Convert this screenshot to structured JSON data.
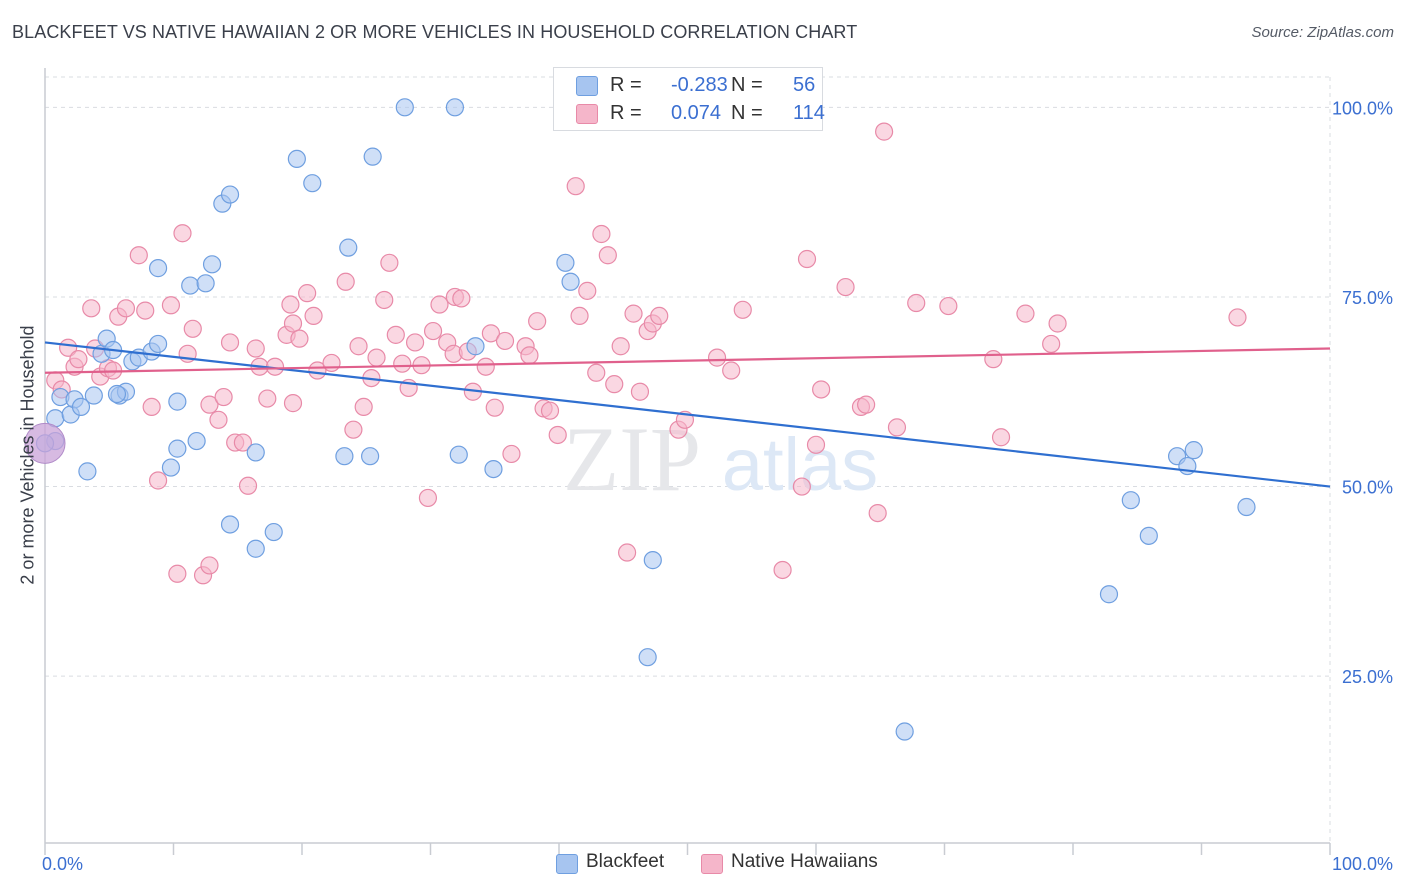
{
  "title": "BLACKFEET VS NATIVE HAWAIIAN 2 OR MORE VEHICLES IN HOUSEHOLD CORRELATION CHART",
  "source": "Source: ZipAtlas.com",
  "watermark": {
    "zip": "ZIP",
    "atlas": "atlas"
  },
  "legend": {
    "rows": [
      {
        "r_label": "R =",
        "r_value": "-0.283",
        "n_label": "N =",
        "n_value": "56",
        "color": "#a7c5f0"
      },
      {
        "r_label": "R =",
        "r_value": "0.074",
        "n_label": "N =",
        "n_value": "114",
        "color": "#f5b6ca"
      }
    ]
  },
  "bottom_legend": [
    "Blackfeet",
    "Native Hawaiians"
  ],
  "colors": {
    "blue_fill": "#a7c5f0",
    "blue_stroke": "#6f9fe0",
    "blue_line": "#2f6fd0",
    "pink_fill": "#f5b6ca",
    "pink_stroke": "#e88aa8",
    "pink_line": "#e0608c",
    "tick_text": "#3b6fd1",
    "grid": "#d9dce1"
  },
  "chart_data": {
    "type": "scatter",
    "title": "BLACKFEET VS NATIVE HAWAIIAN 2 OR MORE VEHICLES IN HOUSEHOLD CORRELATION CHART",
    "xlabel": "",
    "ylabel": "2 or more Vehicles in Household",
    "x_ticks": [
      "0.0%",
      "100.0%"
    ],
    "y_ticks": [
      "25.0%",
      "50.0%",
      "75.0%",
      "100.0%"
    ],
    "xlim": [
      0,
      100
    ],
    "ylim": [
      3,
      104
    ],
    "grid": true,
    "series": [
      {
        "name": "Blackfeet",
        "r": -0.283,
        "n": 56,
        "trend": {
          "x": [
            0,
            100
          ],
          "y": [
            69.0,
            50.0
          ]
        },
        "points": [
          [
            0.8,
            56.0
          ],
          [
            0.8,
            59.0
          ],
          [
            1.2,
            61.8
          ],
          [
            2.0,
            59.5
          ],
          [
            2.3,
            61.5
          ],
          [
            2.8,
            60.5
          ],
          [
            3.3,
            52.0
          ],
          [
            3.8,
            62.0
          ],
          [
            4.4,
            67.5
          ],
          [
            4.8,
            69.5
          ],
          [
            5.3,
            68.0
          ],
          [
            5.8,
            62.0
          ],
          [
            6.3,
            62.5
          ],
          [
            6.8,
            66.5
          ],
          [
            7.3,
            67.0
          ],
          [
            8.3,
            67.8
          ],
          [
            8.8,
            78.8
          ],
          [
            8.8,
            68.8
          ],
          [
            9.8,
            52.5
          ],
          [
            10.3,
            61.2
          ],
          [
            10.3,
            55.0
          ],
          [
            11.3,
            76.5
          ],
          [
            11.8,
            56.0
          ],
          [
            12.5,
            76.8
          ],
          [
            13.0,
            79.3
          ],
          [
            13.8,
            87.3
          ],
          [
            14.4,
            88.5
          ],
          [
            14.4,
            45.0
          ],
          [
            16.4,
            54.5
          ],
          [
            16.4,
            41.8
          ],
          [
            17.8,
            44.0
          ],
          [
            19.6,
            93.2
          ],
          [
            20.8,
            90.0
          ],
          [
            23.3,
            54.0
          ],
          [
            23.6,
            81.5
          ],
          [
            25.3,
            54.0
          ],
          [
            25.5,
            93.5
          ],
          [
            28.0,
            100.0
          ],
          [
            31.9,
            100.0
          ],
          [
            32.2,
            54.2
          ],
          [
            33.5,
            68.5
          ],
          [
            34.9,
            52.3
          ],
          [
            40.5,
            79.5
          ],
          [
            40.9,
            77.0
          ],
          [
            46.9,
            27.5
          ],
          [
            47.3,
            40.3
          ],
          [
            66.9,
            17.7
          ],
          [
            82.8,
            35.8
          ],
          [
            84.5,
            48.2
          ],
          [
            85.9,
            43.5
          ],
          [
            88.1,
            54.0
          ],
          [
            88.9,
            52.7
          ],
          [
            89.4,
            54.8
          ],
          [
            93.5,
            47.3
          ],
          [
            0.0,
            55.7
          ],
          [
            5.6,
            62.2
          ]
        ]
      },
      {
        "name": "Native Hawaiians",
        "r": 0.074,
        "n": 114,
        "trend": {
          "x": [
            0,
            100
          ],
          "y": [
            65.0,
            68.2
          ]
        },
        "points": [
          [
            0.8,
            64.0
          ],
          [
            1.3,
            62.8
          ],
          [
            1.8,
            68.3
          ],
          [
            2.3,
            65.8
          ],
          [
            2.6,
            66.8
          ],
          [
            3.6,
            73.5
          ],
          [
            3.9,
            68.2
          ],
          [
            4.3,
            64.5
          ],
          [
            4.9,
            65.6
          ],
          [
            5.3,
            65.3
          ],
          [
            5.7,
            72.4
          ],
          [
            6.3,
            73.5
          ],
          [
            7.3,
            80.5
          ],
          [
            7.8,
            73.2
          ],
          [
            8.3,
            60.5
          ],
          [
            8.8,
            50.8
          ],
          [
            9.8,
            73.9
          ],
          [
            10.3,
            38.5
          ],
          [
            10.7,
            83.4
          ],
          [
            11.1,
            67.5
          ],
          [
            11.5,
            70.8
          ],
          [
            12.3,
            38.3
          ],
          [
            12.8,
            39.6
          ],
          [
            12.8,
            60.8
          ],
          [
            13.5,
            58.8
          ],
          [
            13.9,
            61.8
          ],
          [
            14.4,
            69.0
          ],
          [
            14.8,
            55.8
          ],
          [
            15.4,
            55.8
          ],
          [
            15.8,
            50.1
          ],
          [
            16.4,
            68.2
          ],
          [
            16.7,
            65.8
          ],
          [
            17.3,
            61.6
          ],
          [
            17.9,
            65.8
          ],
          [
            18.8,
            70.0
          ],
          [
            19.1,
            74.0
          ],
          [
            19.3,
            71.5
          ],
          [
            19.8,
            69.5
          ],
          [
            19.3,
            61.0
          ],
          [
            20.4,
            75.5
          ],
          [
            20.9,
            72.5
          ],
          [
            21.2,
            65.3
          ],
          [
            22.3,
            66.3
          ],
          [
            23.4,
            77.0
          ],
          [
            24.0,
            57.5
          ],
          [
            24.4,
            68.5
          ],
          [
            24.8,
            60.5
          ],
          [
            25.4,
            64.3
          ],
          [
            25.8,
            67.0
          ],
          [
            26.4,
            74.6
          ],
          [
            26.8,
            79.5
          ],
          [
            27.3,
            70.0
          ],
          [
            27.8,
            66.2
          ],
          [
            28.3,
            63.0
          ],
          [
            28.8,
            69.0
          ],
          [
            29.3,
            66.0
          ],
          [
            29.8,
            48.5
          ],
          [
            30.2,
            70.5
          ],
          [
            30.7,
            74.0
          ],
          [
            31.3,
            69.0
          ],
          [
            31.8,
            67.5
          ],
          [
            31.9,
            75.0
          ],
          [
            32.4,
            74.8
          ],
          [
            32.9,
            67.8
          ],
          [
            33.3,
            62.5
          ],
          [
            34.3,
            65.8
          ],
          [
            34.7,
            70.2
          ],
          [
            35.0,
            60.4
          ],
          [
            35.8,
            69.2
          ],
          [
            36.3,
            54.3
          ],
          [
            37.4,
            68.5
          ],
          [
            37.7,
            67.3
          ],
          [
            38.3,
            71.8
          ],
          [
            38.8,
            60.3
          ],
          [
            39.3,
            60.0
          ],
          [
            39.9,
            56.8
          ],
          [
            41.3,
            89.6
          ],
          [
            41.6,
            72.5
          ],
          [
            42.2,
            75.8
          ],
          [
            42.9,
            65.0
          ],
          [
            43.3,
            83.3
          ],
          [
            43.8,
            80.5
          ],
          [
            44.3,
            63.5
          ],
          [
            44.8,
            68.5
          ],
          [
            45.3,
            41.3
          ],
          [
            45.8,
            72.8
          ],
          [
            46.3,
            62.5
          ],
          [
            46.9,
            70.5
          ],
          [
            47.3,
            71.5
          ],
          [
            47.8,
            72.5
          ],
          [
            49.3,
            57.5
          ],
          [
            49.8,
            58.8
          ],
          [
            52.3,
            67.0
          ],
          [
            53.4,
            65.3
          ],
          [
            54.3,
            73.3
          ],
          [
            57.4,
            39.0
          ],
          [
            58.9,
            50.0
          ],
          [
            59.3,
            80.0
          ],
          [
            60.0,
            55.5
          ],
          [
            60.4,
            62.8
          ],
          [
            62.3,
            76.3
          ],
          [
            63.5,
            60.5
          ],
          [
            63.9,
            60.8
          ],
          [
            64.8,
            46.5
          ],
          [
            65.3,
            96.8
          ],
          [
            66.3,
            57.8
          ],
          [
            67.8,
            74.2
          ],
          [
            70.3,
            73.8
          ],
          [
            73.8,
            66.8
          ],
          [
            74.4,
            56.5
          ],
          [
            76.3,
            72.8
          ],
          [
            78.3,
            68.8
          ],
          [
            78.8,
            71.5
          ],
          [
            92.8,
            72.3
          ]
        ]
      }
    ]
  }
}
